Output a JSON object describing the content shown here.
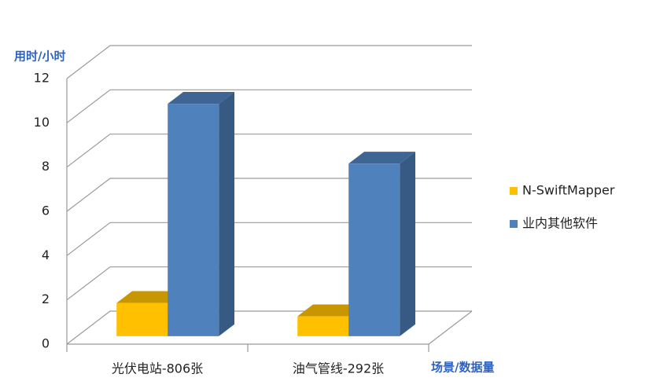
{
  "chart_data": {
    "type": "bar",
    "y_label": "用时/小时",
    "x_label": "场景/数据量",
    "categories": [
      "光伏电站-806张",
      "油气管线-292张"
    ],
    "series": [
      {
        "name": "N-SwiftMapper",
        "color": "#ffc000",
        "values": [
          1.5,
          0.9
        ]
      },
      {
        "name": "业内其他软件",
        "color": "#4f81bd",
        "values": [
          10.5,
          7.8
        ]
      }
    ],
    "ylim": [
      0,
      12
    ],
    "yticks": [
      0,
      2,
      4,
      6,
      8,
      10,
      12
    ],
    "grid": true,
    "legend": "right"
  }
}
